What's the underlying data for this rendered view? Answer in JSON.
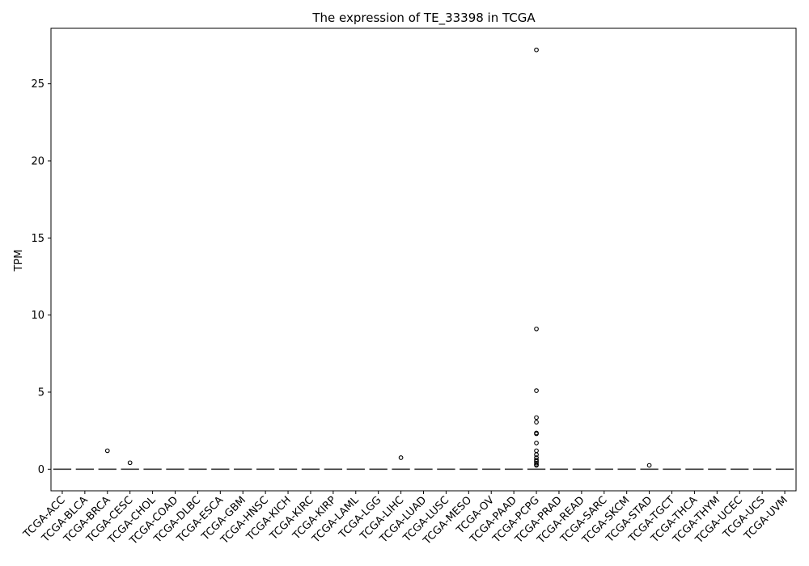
{
  "chart_data": {
    "type": "box",
    "title": "The expression of TE_33398 in TCGA",
    "xlabel": "",
    "ylabel": "TPM",
    "ylim": [
      -1.4,
      28.6
    ],
    "yticks": [
      0,
      5,
      10,
      15,
      20,
      25
    ],
    "grid": false,
    "categories": [
      "TCGA-ACC",
      "TCGA-BLCA",
      "TCGA-BRCA",
      "TCGA-CESC",
      "TCGA-CHOL",
      "TCGA-COAD",
      "TCGA-DLBC",
      "TCGA-ESCA",
      "TCGA-GBM",
      "TCGA-HNSC",
      "TCGA-KICH",
      "TCGA-KIRC",
      "TCGA-KIRP",
      "TCGA-LAML",
      "TCGA-LGG",
      "TCGA-LIHC",
      "TCGA-LUAD",
      "TCGA-LUSC",
      "TCGA-MESO",
      "TCGA-OV",
      "TCGA-PAAD",
      "TCGA-PCPG",
      "TCGA-PRAD",
      "TCGA-READ",
      "TCGA-SARC",
      "TCGA-SKCM",
      "TCGA-STAD",
      "TCGA-TGCT",
      "TCGA-THCA",
      "TCGA-THYM",
      "TCGA-UCEC",
      "TCGA-UCS",
      "TCGA-UVM"
    ],
    "median": [
      0,
      0,
      0,
      0,
      0,
      0,
      0,
      0,
      0,
      0,
      0,
      0,
      0,
      0,
      0,
      0,
      0,
      0,
      0,
      0,
      0,
      0,
      0,
      0,
      0,
      0,
      0,
      0,
      0,
      0,
      0,
      0,
      0
    ],
    "outliers": {
      "TCGA-BRCA": [
        1.2
      ],
      "TCGA-CESC": [
        0.42
      ],
      "TCGA-LIHC": [
        0.75
      ],
      "TCGA-PCPG": [
        27.2,
        9.1,
        5.1,
        3.35,
        3.05,
        2.35,
        2.3,
        1.7,
        1.2,
        0.95,
        0.75,
        0.6,
        0.5,
        0.4,
        0.3,
        0.25
      ],
      "TCGA-STAD": [
        0.25
      ]
    },
    "box_color": "#3a3a3a",
    "outlier_color": "#000000"
  }
}
